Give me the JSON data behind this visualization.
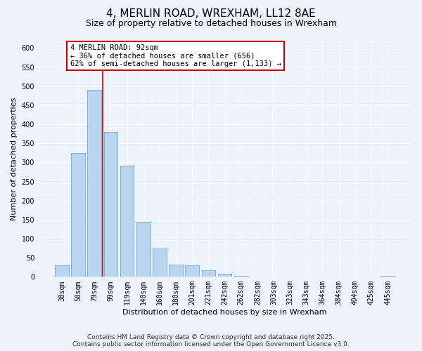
{
  "title": "4, MERLIN ROAD, WREXHAM, LL12 8AE",
  "subtitle": "Size of property relative to detached houses in Wrexham",
  "xlabel": "Distribution of detached houses by size in Wrexham",
  "ylabel": "Number of detached properties",
  "bar_labels": [
    "38sqm",
    "58sqm",
    "79sqm",
    "99sqm",
    "119sqm",
    "140sqm",
    "160sqm",
    "180sqm",
    "201sqm",
    "221sqm",
    "242sqm",
    "262sqm",
    "282sqm",
    "303sqm",
    "323sqm",
    "343sqm",
    "364sqm",
    "384sqm",
    "404sqm",
    "425sqm",
    "445sqm"
  ],
  "bar_values": [
    30,
    325,
    490,
    380,
    292,
    145,
    75,
    32,
    30,
    18,
    8,
    2,
    1,
    0,
    0,
    0,
    0,
    0,
    0,
    0,
    2
  ],
  "bar_color": "#b8d4ee",
  "bar_edge_color": "#6aaad4",
  "vline_color": "#cc0000",
  "annotation_title": "4 MERLIN ROAD: 92sqm",
  "annotation_line1": "← 36% of detached houses are smaller (656)",
  "annotation_line2": "62% of semi-detached houses are larger (1,133) →",
  "annotation_box_facecolor": "#ffffff",
  "annotation_box_edgecolor": "#cc0000",
  "ylim": [
    0,
    620
  ],
  "yticks": [
    0,
    50,
    100,
    150,
    200,
    250,
    300,
    350,
    400,
    450,
    500,
    550,
    600
  ],
  "footer1": "Contains HM Land Registry data © Crown copyright and database right 2025.",
  "footer2": "Contains public sector information licensed under the Open Government Licence v3.0.",
  "bg_color": "#eef2fb",
  "title_fontsize": 11,
  "subtitle_fontsize": 9,
  "axis_label_fontsize": 8,
  "tick_fontsize": 7,
  "annotation_fontsize": 7.5,
  "footer_fontsize": 6.5
}
